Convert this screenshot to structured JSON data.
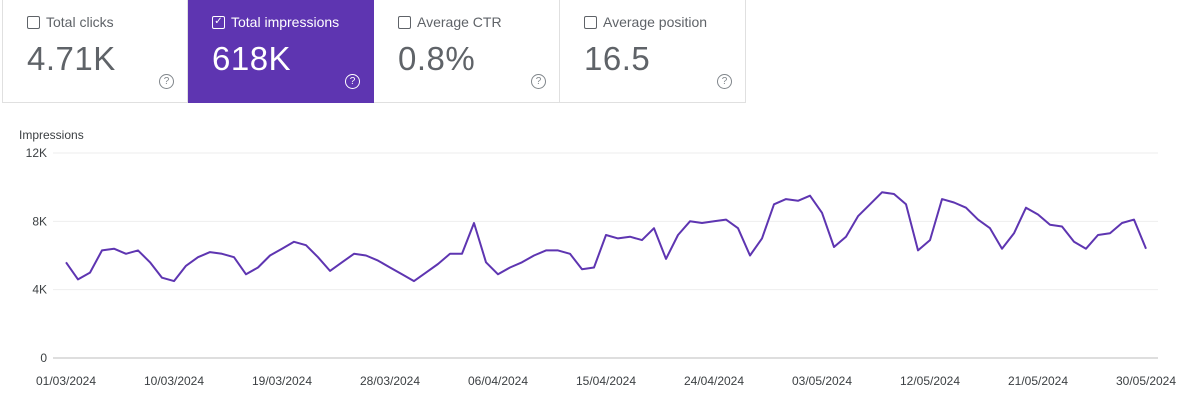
{
  "metrics": [
    {
      "label": "Total clicks",
      "value": "4.71K",
      "checked": false
    },
    {
      "label": "Total impressions",
      "value": "618K",
      "checked": true
    },
    {
      "label": "Average CTR",
      "value": "0.8%",
      "checked": false
    },
    {
      "label": "Average position",
      "value": "16.5",
      "checked": false
    }
  ],
  "colors": {
    "accent": "#5e35b1",
    "line": "#5e35b1",
    "grid": "#eeeeee"
  },
  "icons": {
    "checkbox_checked": "checkmark-icon",
    "help": "help-circle-icon"
  },
  "chart_data": {
    "type": "line",
    "ylabel": "Impressions",
    "ylim": [
      0,
      12000
    ],
    "yticks": [
      0,
      4000,
      8000,
      12000
    ],
    "ytick_labels": [
      "0",
      "4K",
      "8K",
      "12K"
    ],
    "xtick_labels": [
      "01/03/2024",
      "10/03/2024",
      "19/03/2024",
      "28/03/2024",
      "06/04/2024",
      "15/04/2024",
      "24/04/2024",
      "03/05/2024",
      "12/05/2024",
      "21/05/2024",
      "30/05/2024"
    ],
    "grid": true,
    "series": [
      {
        "values": [
          5600,
          4600,
          5000,
          6300,
          6400,
          6100,
          6300,
          5600,
          4700,
          4500,
          5400,
          5900,
          6200,
          6100,
          5900,
          4900,
          5300,
          6000,
          6400,
          6800,
          6600,
          5900,
          5100,
          5600,
          6100,
          6000,
          5700,
          5300,
          4900,
          4500,
          5000,
          5500,
          6100,
          6100,
          7900,
          5600,
          4900,
          5300,
          5600,
          6000,
          6300,
          6300,
          6100,
          5200,
          5300,
          7200,
          7000,
          7100,
          6900,
          7600,
          5800,
          7200,
          8000,
          7900,
          8000,
          8100,
          7600,
          6000,
          7000,
          9000,
          9300,
          9200,
          9500,
          8500,
          6500,
          7100,
          8300,
          9000,
          9700,
          9600,
          9000,
          6300,
          6900,
          9300,
          9100,
          8800,
          8100,
          7600,
          6400,
          7300,
          8800,
          8400,
          7800,
          7700,
          6800,
          6400,
          7200,
          7300,
          7900,
          8100,
          6400
        ]
      }
    ]
  }
}
